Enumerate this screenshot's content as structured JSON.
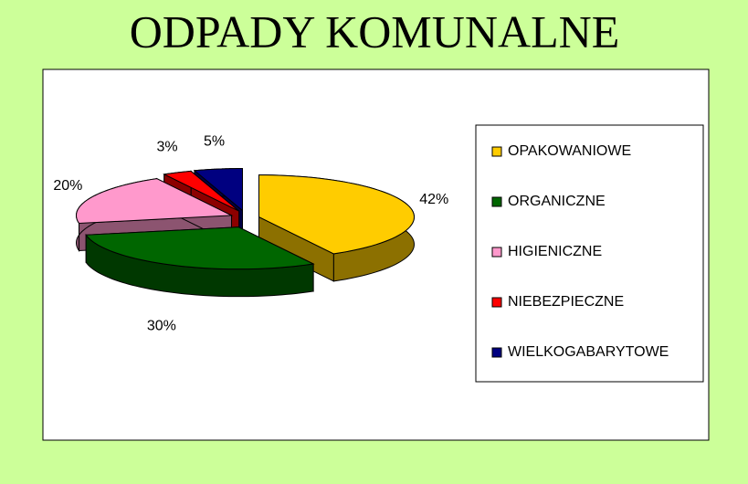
{
  "chart_data": {
    "type": "pie",
    "title": "ODPADY KOMUNALNE",
    "categories": [
      "OPAKOWANIOWE",
      "ORGANICZNE",
      "HIGIENICZNE",
      "NIEBEZPIECZNE",
      "WIELKOGABARYTOWE"
    ],
    "values": [
      42,
      30,
      20,
      3,
      5
    ],
    "value_labels": [
      "42%",
      "30%",
      "20%",
      "3%",
      "5%"
    ],
    "colors": [
      "#ffcc00",
      "#006600",
      "#ff99cc",
      "#ff0000",
      "#000080"
    ],
    "legend": "right"
  }
}
